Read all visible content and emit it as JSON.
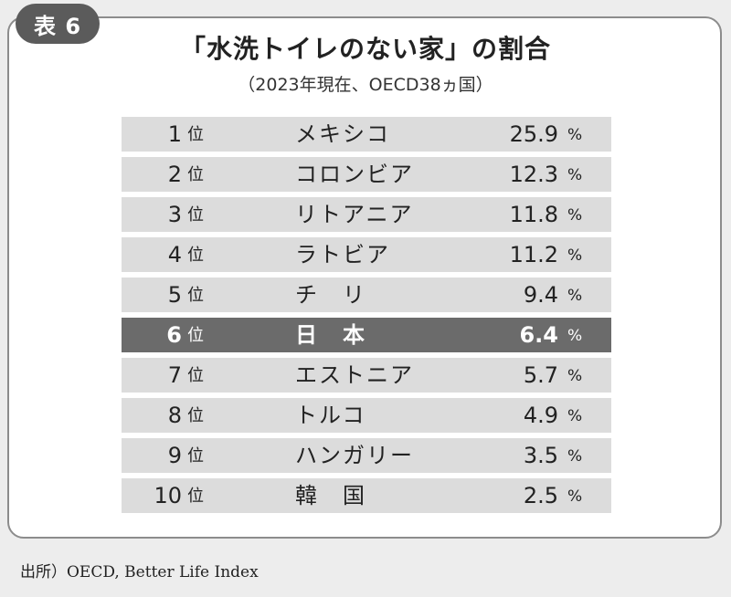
{
  "badge": "表 6",
  "title": "「水洗トイレのない家」の割合",
  "subtitle": "（2023年現在、OECD38ヵ国）",
  "source": "出所）OECD, Better Life Index",
  "colors": {
    "row_bg": "#dcdcdc",
    "highlight_bg": "#6b6b6b",
    "border": "#8c8c8c",
    "badge_bg": "#5b5b5b"
  },
  "chart_data": {
    "type": "table",
    "title": "「水洗トイレのない家」の割合",
    "subtitle": "（2023年現在、OECD38ヵ国）",
    "rank_suffix": "位",
    "unit": "%",
    "highlight_rank": 6,
    "rows": [
      {
        "rank": "1",
        "country": "メキシコ",
        "value": "25.9"
      },
      {
        "rank": "2",
        "country": "コロンビア",
        "value": "12.3"
      },
      {
        "rank": "3",
        "country": "リトアニア",
        "value": "11.8"
      },
      {
        "rank": "4",
        "country": "ラトビア",
        "value": "11.2"
      },
      {
        "rank": "5",
        "country": "チ　リ",
        "value": "9.4"
      },
      {
        "rank": "6",
        "country": "日　本",
        "value": "6.4"
      },
      {
        "rank": "7",
        "country": "エストニア",
        "value": "5.7"
      },
      {
        "rank": "8",
        "country": "トルコ",
        "value": "4.9"
      },
      {
        "rank": "9",
        "country": "ハンガリー",
        "value": "3.5"
      },
      {
        "rank": "10",
        "country": "韓　国",
        "value": "2.5"
      }
    ]
  }
}
